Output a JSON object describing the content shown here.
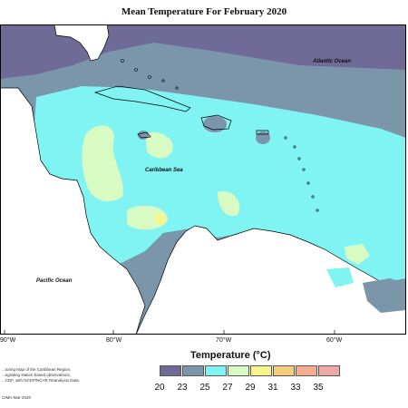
{
  "title": "Mean Temperature For February 2020",
  "labels": {
    "atlantic": "Atlantic Ocean",
    "caribbean": "Caribbean Sea",
    "pacific": "Pacific Ocean"
  },
  "longitudes": [
    "90°W",
    "80°W",
    "70°W",
    "60°W"
  ],
  "legend": {
    "title": "Temperature (°C)",
    "ticks": [
      "20",
      "23",
      "25",
      "27",
      "29",
      "31",
      "33",
      "35"
    ],
    "colors": [
      "#6f6a96",
      "#7b96ab",
      "#7ff4f2",
      "#d8fbc4",
      "#f7f58c",
      "#f6cd7b",
      "#f4ad8d",
      "#eea9a6"
    ]
  },
  "credits": {
    "line1": "...toring Map of the Caribbean Region.",
    "line2": "...egrating station based observations,",
    "line3": "...CDF, with NCEP/NCAR Reanalysis Data.",
    "line4": "CIMH Mar-2020"
  },
  "colors": {
    "cold": "#6f6a96",
    "cool": "#7b96ab",
    "mild": "#7ff4f2",
    "warm": "#d8fbc4",
    "hot": "#f7f58c",
    "land": "#ffffff"
  }
}
